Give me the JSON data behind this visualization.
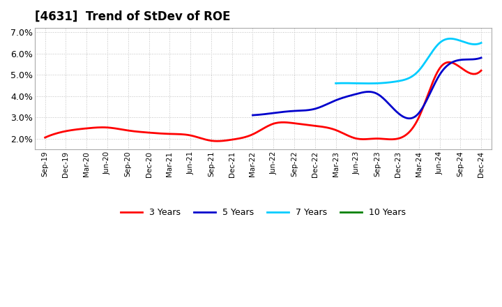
{
  "title": "[4631]  Trend of StDev of ROE",
  "ylim": [
    0.015,
    0.072
  ],
  "yticks": [
    0.02,
    0.03,
    0.04,
    0.05,
    0.06,
    0.07
  ],
  "ytick_labels": [
    "2.0%",
    "3.0%",
    "4.0%",
    "5.0%",
    "6.0%",
    "7.0%"
  ],
  "background_color": "#ffffff",
  "grid_color": "#c0c0c0",
  "x_labels": [
    "Sep-19",
    "Dec-19",
    "Mar-20",
    "Jun-20",
    "Sep-20",
    "Dec-20",
    "Mar-21",
    "Jun-21",
    "Sep-21",
    "Dec-21",
    "Mar-22",
    "Jun-22",
    "Sep-22",
    "Dec-22",
    "Mar-23",
    "Jun-23",
    "Sep-23",
    "Dec-23",
    "Mar-24",
    "Jun-24",
    "Sep-24",
    "Dec-24"
  ],
  "series_3y": {
    "color": "#ff0000",
    "x": [
      0,
      1,
      2,
      3,
      4,
      5,
      6,
      7,
      8,
      9,
      10,
      11,
      12,
      13,
      14,
      15,
      16,
      17,
      18,
      19,
      20,
      21
    ],
    "y": [
      0.0205,
      0.0235,
      0.0248,
      0.0252,
      0.0238,
      0.0228,
      0.0222,
      0.0215,
      0.019,
      0.0195,
      0.022,
      0.027,
      0.0272,
      0.026,
      0.024,
      0.02,
      0.02,
      0.02,
      0.03,
      0.053,
      0.0535,
      0.052
    ]
  },
  "series_5y": {
    "color": "#0000cc",
    "x": [
      10,
      11,
      12,
      13,
      14,
      15,
      16,
      17,
      18,
      19,
      20,
      21
    ],
    "y": [
      0.031,
      0.032,
      0.033,
      0.034,
      0.038,
      0.041,
      0.041,
      0.032,
      0.032,
      0.05,
      0.057,
      0.058
    ]
  },
  "series_7y": {
    "color": "#00ccff",
    "x": [
      14,
      15,
      16,
      17,
      18,
      19,
      20,
      21
    ],
    "y": [
      0.046,
      0.046,
      0.046,
      0.047,
      0.052,
      0.065,
      0.066,
      0.065
    ]
  },
  "series_10y": {
    "color": "#008000",
    "x": [],
    "y": []
  },
  "legend_labels": [
    "3 Years",
    "5 Years",
    "7 Years",
    "10 Years"
  ],
  "legend_colors": [
    "#ff0000",
    "#0000cc",
    "#00ccff",
    "#008000"
  ]
}
